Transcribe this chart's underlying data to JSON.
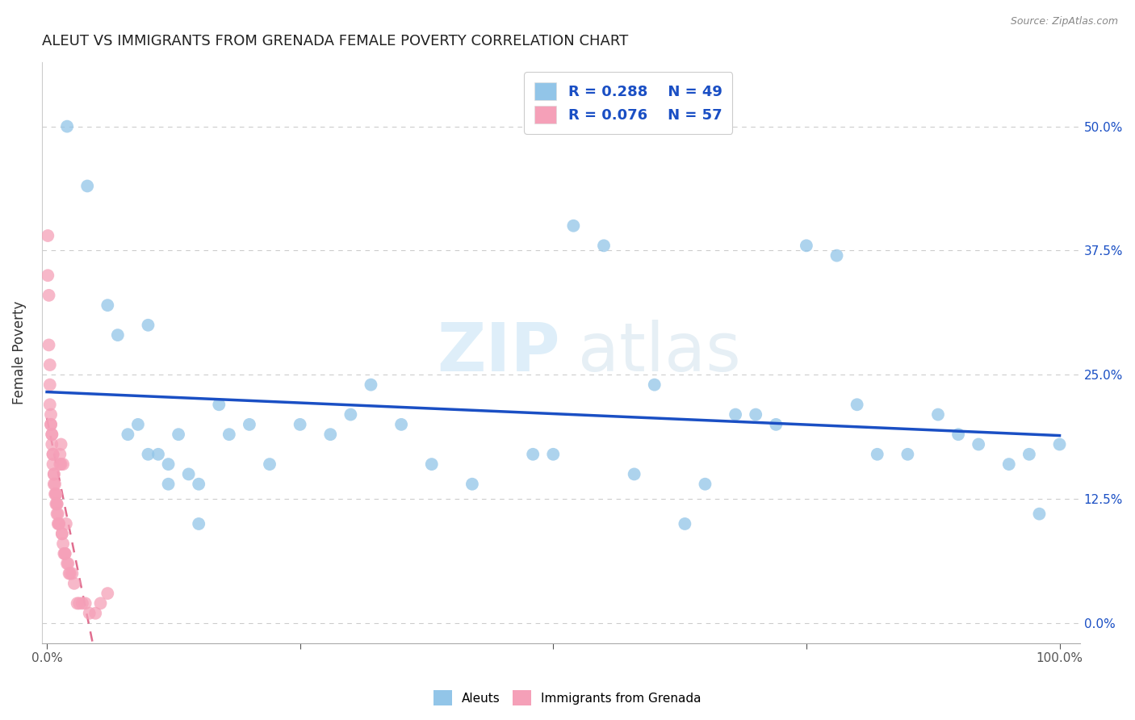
{
  "title": "ALEUT VS IMMIGRANTS FROM GRENADA FEMALE POVERTY CORRELATION CHART",
  "source": "Source: ZipAtlas.com",
  "ylabel": "Female Poverty",
  "yticks": [
    "0.0%",
    "12.5%",
    "25.0%",
    "37.5%",
    "50.0%"
  ],
  "ytick_vals": [
    0,
    0.125,
    0.25,
    0.375,
    0.5
  ],
  "legend_r1": "R = 0.288",
  "legend_n1": "N = 49",
  "legend_r2": "R = 0.076",
  "legend_n2": "N = 57",
  "label1": "Aleuts",
  "label2": "Immigrants from Grenada",
  "color1": "#92C5E8",
  "color2": "#F5A0B8",
  "trendline1_color": "#1A4FC4",
  "trendline2_color": "#D43060",
  "background_color": "#ffffff",
  "aleuts_x": [
    0.02,
    0.04,
    0.06,
    0.07,
    0.08,
    0.09,
    0.1,
    0.1,
    0.11,
    0.12,
    0.12,
    0.13,
    0.14,
    0.15,
    0.15,
    0.17,
    0.18,
    0.2,
    0.22,
    0.25,
    0.28,
    0.3,
    0.32,
    0.35,
    0.38,
    0.42,
    0.48,
    0.5,
    0.52,
    0.55,
    0.58,
    0.6,
    0.63,
    0.65,
    0.68,
    0.7,
    0.72,
    0.75,
    0.78,
    0.8,
    0.82,
    0.85,
    0.88,
    0.9,
    0.92,
    0.95,
    0.97,
    0.98,
    1.0
  ],
  "aleuts_y": [
    0.5,
    0.44,
    0.32,
    0.29,
    0.19,
    0.2,
    0.3,
    0.17,
    0.17,
    0.14,
    0.16,
    0.19,
    0.15,
    0.14,
    0.1,
    0.22,
    0.19,
    0.2,
    0.16,
    0.2,
    0.19,
    0.21,
    0.24,
    0.2,
    0.16,
    0.14,
    0.17,
    0.17,
    0.4,
    0.38,
    0.15,
    0.24,
    0.1,
    0.14,
    0.21,
    0.21,
    0.2,
    0.38,
    0.37,
    0.22,
    0.17,
    0.17,
    0.21,
    0.19,
    0.18,
    0.16,
    0.17,
    0.11,
    0.18
  ],
  "grenada_x": [
    0.001,
    0.001,
    0.002,
    0.002,
    0.003,
    0.003,
    0.003,
    0.004,
    0.004,
    0.004,
    0.005,
    0.005,
    0.005,
    0.006,
    0.006,
    0.006,
    0.007,
    0.007,
    0.007,
    0.008,
    0.008,
    0.009,
    0.009,
    0.009,
    0.01,
    0.01,
    0.01,
    0.011,
    0.011,
    0.012,
    0.012,
    0.013,
    0.013,
    0.014,
    0.014,
    0.015,
    0.015,
    0.016,
    0.016,
    0.017,
    0.018,
    0.018,
    0.019,
    0.02,
    0.021,
    0.022,
    0.023,
    0.025,
    0.027,
    0.03,
    0.032,
    0.035,
    0.038,
    0.042,
    0.048,
    0.053,
    0.06
  ],
  "grenada_y": [
    0.39,
    0.35,
    0.33,
    0.28,
    0.26,
    0.24,
    0.22,
    0.21,
    0.2,
    0.2,
    0.19,
    0.19,
    0.18,
    0.17,
    0.17,
    0.16,
    0.15,
    0.15,
    0.14,
    0.14,
    0.13,
    0.13,
    0.13,
    0.12,
    0.12,
    0.12,
    0.11,
    0.11,
    0.1,
    0.1,
    0.1,
    0.17,
    0.16,
    0.16,
    0.18,
    0.09,
    0.09,
    0.08,
    0.16,
    0.07,
    0.07,
    0.07,
    0.1,
    0.06,
    0.06,
    0.05,
    0.05,
    0.05,
    0.04,
    0.02,
    0.02,
    0.02,
    0.02,
    0.01,
    0.01,
    0.02,
    0.03
  ]
}
